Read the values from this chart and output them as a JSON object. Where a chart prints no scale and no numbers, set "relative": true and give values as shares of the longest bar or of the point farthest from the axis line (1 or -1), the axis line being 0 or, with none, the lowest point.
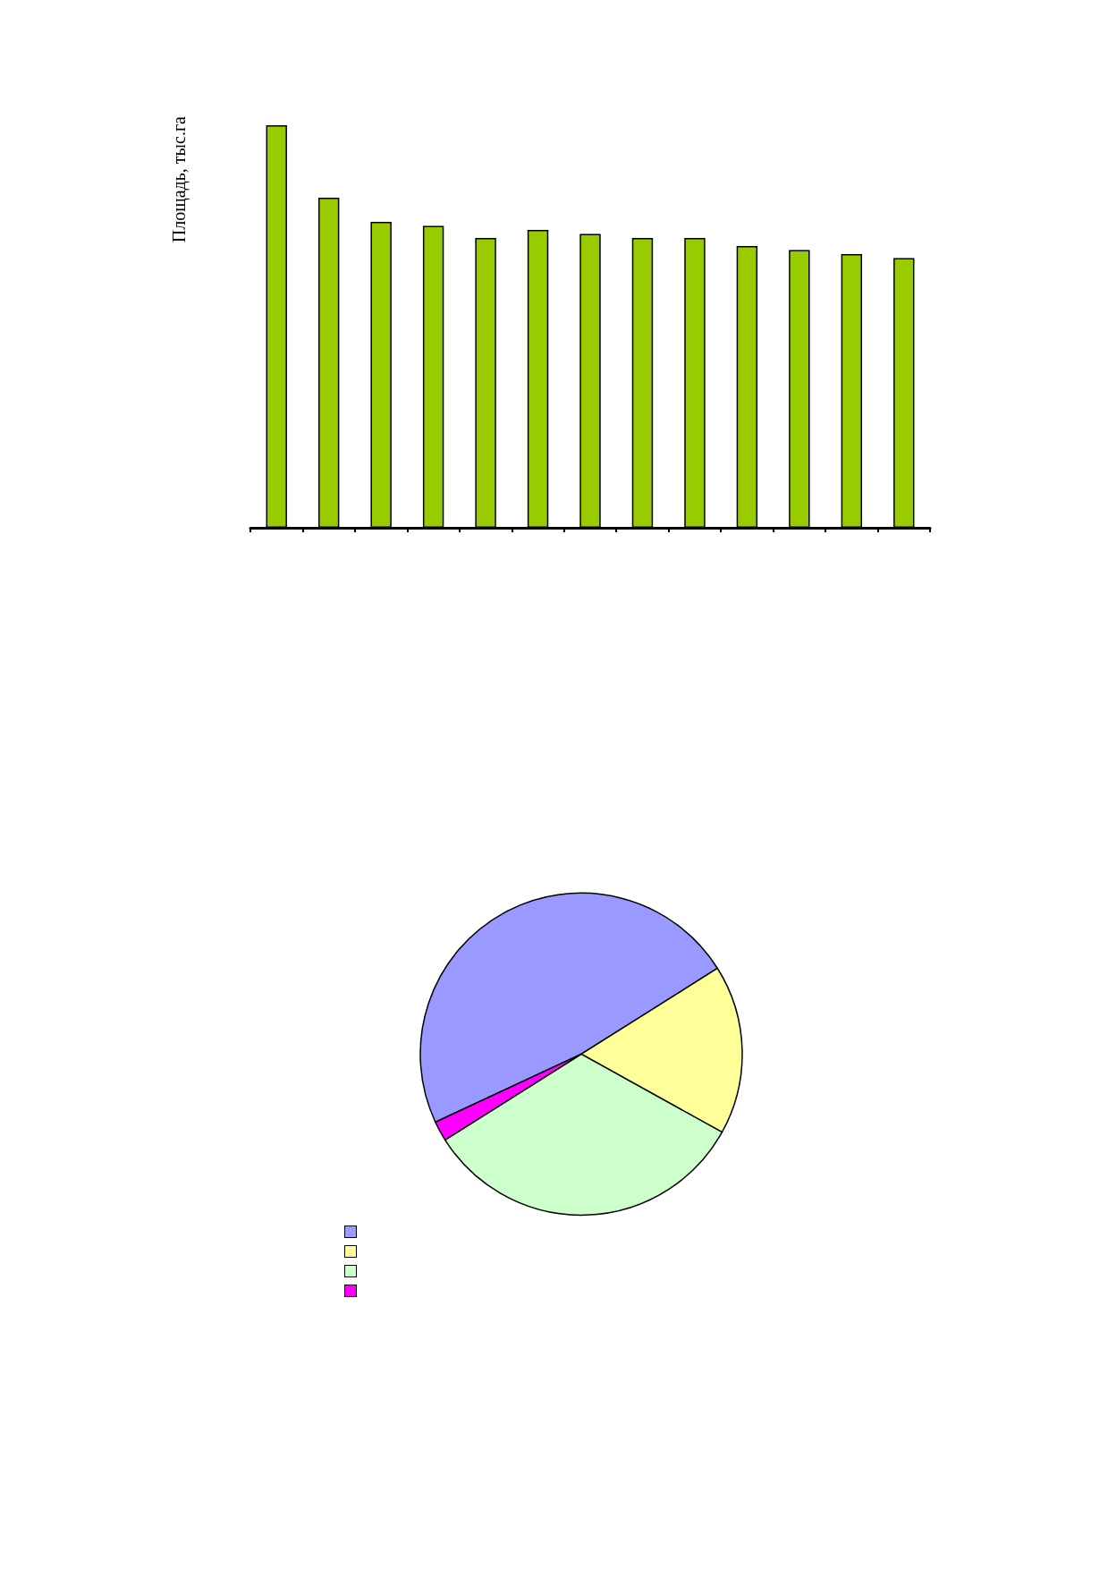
{
  "chart_data": [
    {
      "type": "bar",
      "ylabel": "Площадь, тыс.га",
      "relative": true,
      "color": "#99cc00",
      "categories": [
        null,
        null,
        null,
        null,
        null,
        null,
        null,
        null,
        null,
        null,
        null,
        null,
        null
      ],
      "values": [
        1,
        0.82,
        0.76,
        0.75,
        0.72,
        0.74,
        0.73,
        0.72,
        0.72,
        0.7,
        0.69,
        0.68,
        0.67
      ]
    },
    {
      "type": "pie",
      "categories": [
        null,
        null,
        null,
        null
      ],
      "values": [
        48,
        17,
        33,
        2
      ],
      "colors": [
        "#9999ff",
        "#ffff99",
        "#ccffcc",
        "#ff00ff"
      ]
    }
  ]
}
